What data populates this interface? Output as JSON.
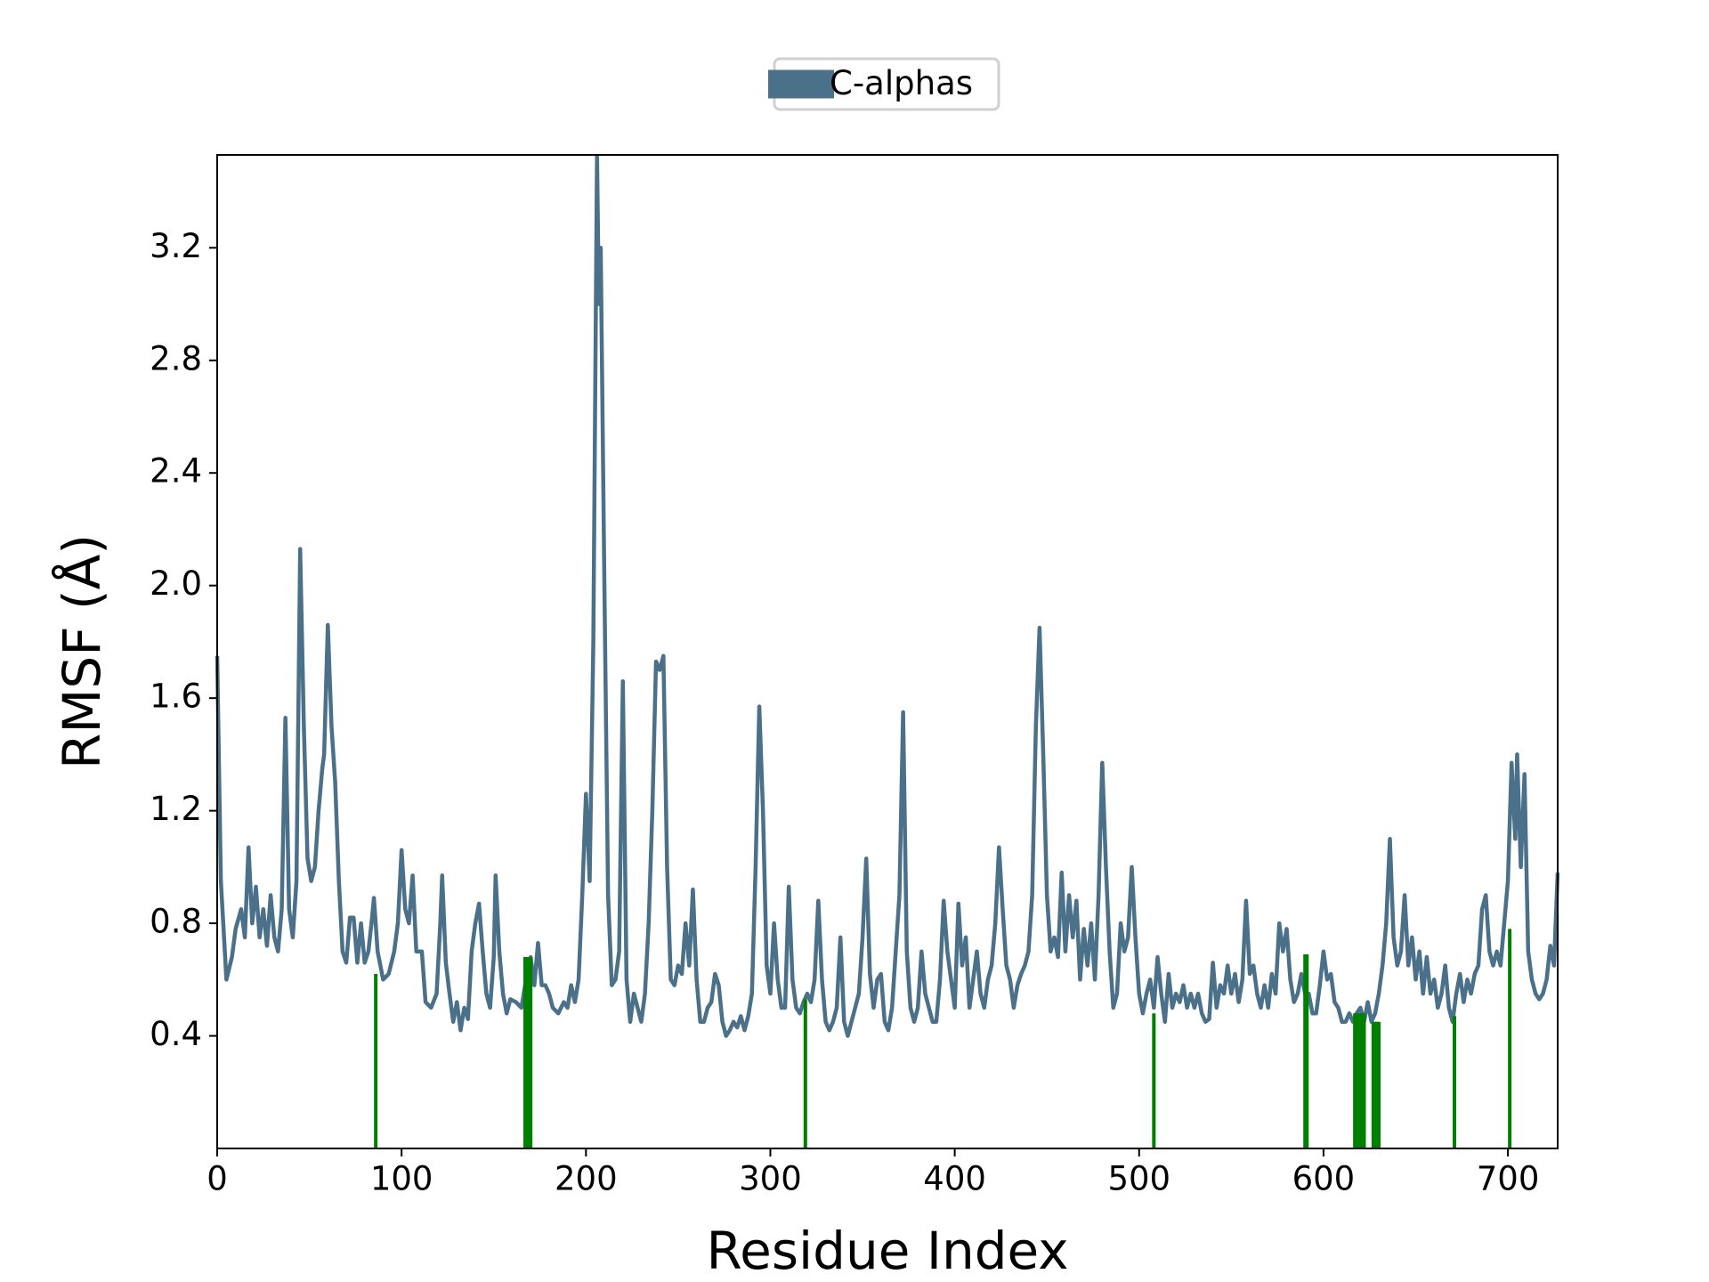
{
  "chart_data": {
    "type": "line",
    "xlabel": "Residue Index",
    "ylabel": "RMSF (Å)",
    "xlim": [
      0,
      727
    ],
    "ylim": [
      0,
      3.53
    ],
    "xticks": [
      0,
      100,
      200,
      300,
      400,
      500,
      600,
      700
    ],
    "yticks": [
      0.4,
      0.8,
      1.2,
      1.6,
      {
        "value": 2,
        "label": "2.0"
      },
      2.4,
      2.8,
      3.2
    ],
    "legend": "upper center",
    "series": [
      {
        "name": "C-alphas",
        "color": "#4b7089",
        "type": "line",
        "x": [
          0,
          2,
          5,
          8,
          10,
          13,
          15,
          17,
          19,
          21,
          23,
          25,
          27,
          29,
          31,
          33,
          35,
          37,
          39,
          41,
          43,
          45,
          47,
          49,
          51,
          53,
          55,
          57,
          58,
          60,
          62,
          64,
          66,
          68,
          70,
          72,
          74,
          76,
          78,
          80,
          82,
          84,
          85,
          87,
          90,
          93,
          96,
          98,
          100,
          102,
          104,
          106,
          108,
          111,
          113,
          116,
          119,
          121,
          122,
          124,
          126,
          128,
          130,
          132,
          134,
          136,
          138,
          140,
          142,
          144,
          146,
          148,
          150,
          151,
          153,
          155,
          157,
          159,
          162,
          165,
          168,
          170,
          172,
          174,
          176,
          178,
          180,
          182,
          185,
          188,
          190,
          192,
          194,
          196,
          198,
          200,
          202,
          204,
          206,
          207,
          208,
          210,
          212,
          214,
          216,
          218,
          220,
          222,
          224,
          226,
          228,
          230,
          232,
          234,
          236,
          238,
          240,
          242,
          244,
          246,
          248,
          250,
          252,
          254,
          256,
          258,
          260,
          262,
          264,
          266,
          268,
          270,
          272,
          274,
          276,
          278,
          280,
          282,
          284,
          286,
          288,
          290,
          292,
          294,
          296,
          298,
          300,
          302,
          304,
          306,
          308,
          310,
          312,
          314,
          316,
          318,
          320,
          322,
          324,
          326,
          328,
          330,
          332,
          334,
          336,
          338,
          340,
          342,
          344,
          346,
          348,
          350,
          352,
          354,
          356,
          358,
          360,
          362,
          364,
          366,
          368,
          370,
          372,
          374,
          376,
          378,
          380,
          382,
          384,
          386,
          388,
          390,
          392,
          394,
          396,
          398,
          400,
          402,
          404,
          406,
          408,
          410,
          412,
          414,
          416,
          418,
          420,
          422,
          424,
          426,
          428,
          430,
          432,
          434,
          436,
          438,
          440,
          442,
          444,
          446,
          448,
          450,
          452,
          454,
          456,
          458,
          460,
          462,
          464,
          466,
          468,
          470,
          472,
          474,
          476,
          478,
          480,
          482,
          484,
          486,
          488,
          490,
          492,
          494,
          496,
          498,
          500,
          502,
          504,
          506,
          508,
          510,
          512,
          514,
          516,
          518,
          520,
          522,
          524,
          526,
          528,
          530,
          532,
          534,
          536,
          538,
          540,
          542,
          544,
          546,
          548,
          550,
          552,
          554,
          556,
          558,
          560,
          562,
          564,
          566,
          568,
          570,
          572,
          574,
          576,
          578,
          580,
          582,
          584,
          586,
          588,
          590,
          592,
          594,
          596,
          598,
          600,
          602,
          604,
          606,
          608,
          610,
          612,
          614,
          616,
          618,
          620,
          622,
          624,
          626,
          628,
          630,
          632,
          634,
          636,
          638,
          640,
          642,
          644,
          646,
          648,
          650,
          652,
          654,
          656,
          658,
          660,
          662,
          664,
          666,
          668,
          670,
          672,
          674,
          676,
          678,
          680,
          682,
          684,
          686,
          688,
          690,
          692,
          694,
          696,
          698,
          700,
          702,
          704,
          705,
          707,
          709,
          711,
          713,
          715,
          717,
          719,
          721,
          723,
          725,
          727
        ],
        "values": [
          1.75,
          0.95,
          0.6,
          0.68,
          0.78,
          0.85,
          0.75,
          1.07,
          0.8,
          0.93,
          0.75,
          0.85,
          0.72,
          0.9,
          0.75,
          0.7,
          0.85,
          1.53,
          0.85,
          0.75,
          0.95,
          2.13,
          1.5,
          1.03,
          0.95,
          1.0,
          1.2,
          1.35,
          1.4,
          1.86,
          1.5,
          1.3,
          0.95,
          0.7,
          0.66,
          0.82,
          0.82,
          0.66,
          0.8,
          0.66,
          0.7,
          0.82,
          0.89,
          0.7,
          0.6,
          0.62,
          0.7,
          0.8,
          1.06,
          0.85,
          0.8,
          0.97,
          0.7,
          0.7,
          0.52,
          0.5,
          0.55,
          0.8,
          0.97,
          0.66,
          0.55,
          0.45,
          0.52,
          0.42,
          0.5,
          0.46,
          0.7,
          0.8,
          0.87,
          0.7,
          0.55,
          0.5,
          0.68,
          0.97,
          0.7,
          0.55,
          0.48,
          0.53,
          0.52,
          0.5,
          0.62,
          0.68,
          0.58,
          0.73,
          0.58,
          0.58,
          0.55,
          0.5,
          0.48,
          0.52,
          0.5,
          0.58,
          0.52,
          0.6,
          0.9,
          1.26,
          0.95,
          1.8,
          3.53,
          3.0,
          3.2,
          2.0,
          0.9,
          0.58,
          0.6,
          0.7,
          1.66,
          0.6,
          0.45,
          0.55,
          0.5,
          0.45,
          0.55,
          0.8,
          1.2,
          1.73,
          1.7,
          1.75,
          1.0,
          0.6,
          0.58,
          0.65,
          0.62,
          0.8,
          0.65,
          0.92,
          0.6,
          0.45,
          0.45,
          0.5,
          0.52,
          0.62,
          0.58,
          0.45,
          0.4,
          0.42,
          0.45,
          0.43,
          0.47,
          0.42,
          0.47,
          0.55,
          1.0,
          1.57,
          1.2,
          0.65,
          0.55,
          0.8,
          0.6,
          0.5,
          0.5,
          0.93,
          0.6,
          0.5,
          0.48,
          0.52,
          0.55,
          0.52,
          0.6,
          0.88,
          0.6,
          0.45,
          0.42,
          0.45,
          0.5,
          0.75,
          0.45,
          0.4,
          0.45,
          0.5,
          0.55,
          0.75,
          1.03,
          0.62,
          0.5,
          0.6,
          0.62,
          0.45,
          0.42,
          0.5,
          0.7,
          0.9,
          1.55,
          0.7,
          0.5,
          0.45,
          0.5,
          0.7,
          0.55,
          0.5,
          0.45,
          0.45,
          0.6,
          0.88,
          0.7,
          0.6,
          0.5,
          0.87,
          0.65,
          0.75,
          0.5,
          0.6,
          0.7,
          0.55,
          0.5,
          0.6,
          0.65,
          0.8,
          1.07,
          0.85,
          0.65,
          0.6,
          0.5,
          0.58,
          0.62,
          0.65,
          0.7,
          0.9,
          1.5,
          1.85,
          1.4,
          0.9,
          0.7,
          0.75,
          0.68,
          0.98,
          0.7,
          0.9,
          0.75,
          0.88,
          0.6,
          0.78,
          0.65,
          0.8,
          0.6,
          0.9,
          1.37,
          1.0,
          0.7,
          0.5,
          0.55,
          0.8,
          0.7,
          0.75,
          1.0,
          0.75,
          0.55,
          0.48,
          0.55,
          0.6,
          0.5,
          0.68,
          0.55,
          0.45,
          0.62,
          0.5,
          0.55,
          0.52,
          0.58,
          0.5,
          0.55,
          0.5,
          0.55,
          0.48,
          0.45,
          0.46,
          0.66,
          0.5,
          0.58,
          0.55,
          0.65,
          0.55,
          0.62,
          0.52,
          0.6,
          0.88,
          0.62,
          0.65,
          0.55,
          0.5,
          0.58,
          0.5,
          0.62,
          0.55,
          0.8,
          0.7,
          0.78,
          0.6,
          0.52,
          0.55,
          0.62,
          0.55,
          0.55,
          0.48,
          0.48,
          0.58,
          0.7,
          0.6,
          0.62,
          0.52,
          0.5,
          0.45,
          0.45,
          0.48,
          0.45,
          0.48,
          0.5,
          0.45,
          0.52,
          0.45,
          0.48,
          0.55,
          0.65,
          0.8,
          1.1,
          0.75,
          0.65,
          0.7,
          0.9,
          0.65,
          0.75,
          0.6,
          0.7,
          0.55,
          0.68,
          0.55,
          0.6,
          0.5,
          0.55,
          0.65,
          0.5,
          0.45,
          0.55,
          0.62,
          0.52,
          0.6,
          0.55,
          0.62,
          0.65,
          0.85,
          0.9,
          0.7,
          0.65,
          0.7,
          0.65,
          0.8,
          0.95,
          1.37,
          1.1,
          1.4,
          1.0,
          1.33,
          0.7,
          0.6,
          0.55,
          0.53,
          0.55,
          0.6,
          0.72,
          0.65,
          0.98
        ]
      },
      {
        "color": "#008000",
        "type": "vlines",
        "x": [
          86,
          167,
          168,
          169,
          170,
          319,
          508,
          590,
          591,
          617,
          618,
          619,
          620,
          621,
          622,
          627,
          628,
          629,
          630,
          671,
          701
        ],
        "values": [
          0.62,
          0.68,
          0.68,
          0.68,
          0.68,
          0.53,
          0.48,
          0.69,
          0.69,
          0.48,
          0.48,
          0.48,
          0.48,
          0.48,
          0.48,
          0.45,
          0.45,
          0.45,
          0.45,
          0.47,
          0.78
        ]
      }
    ]
  }
}
